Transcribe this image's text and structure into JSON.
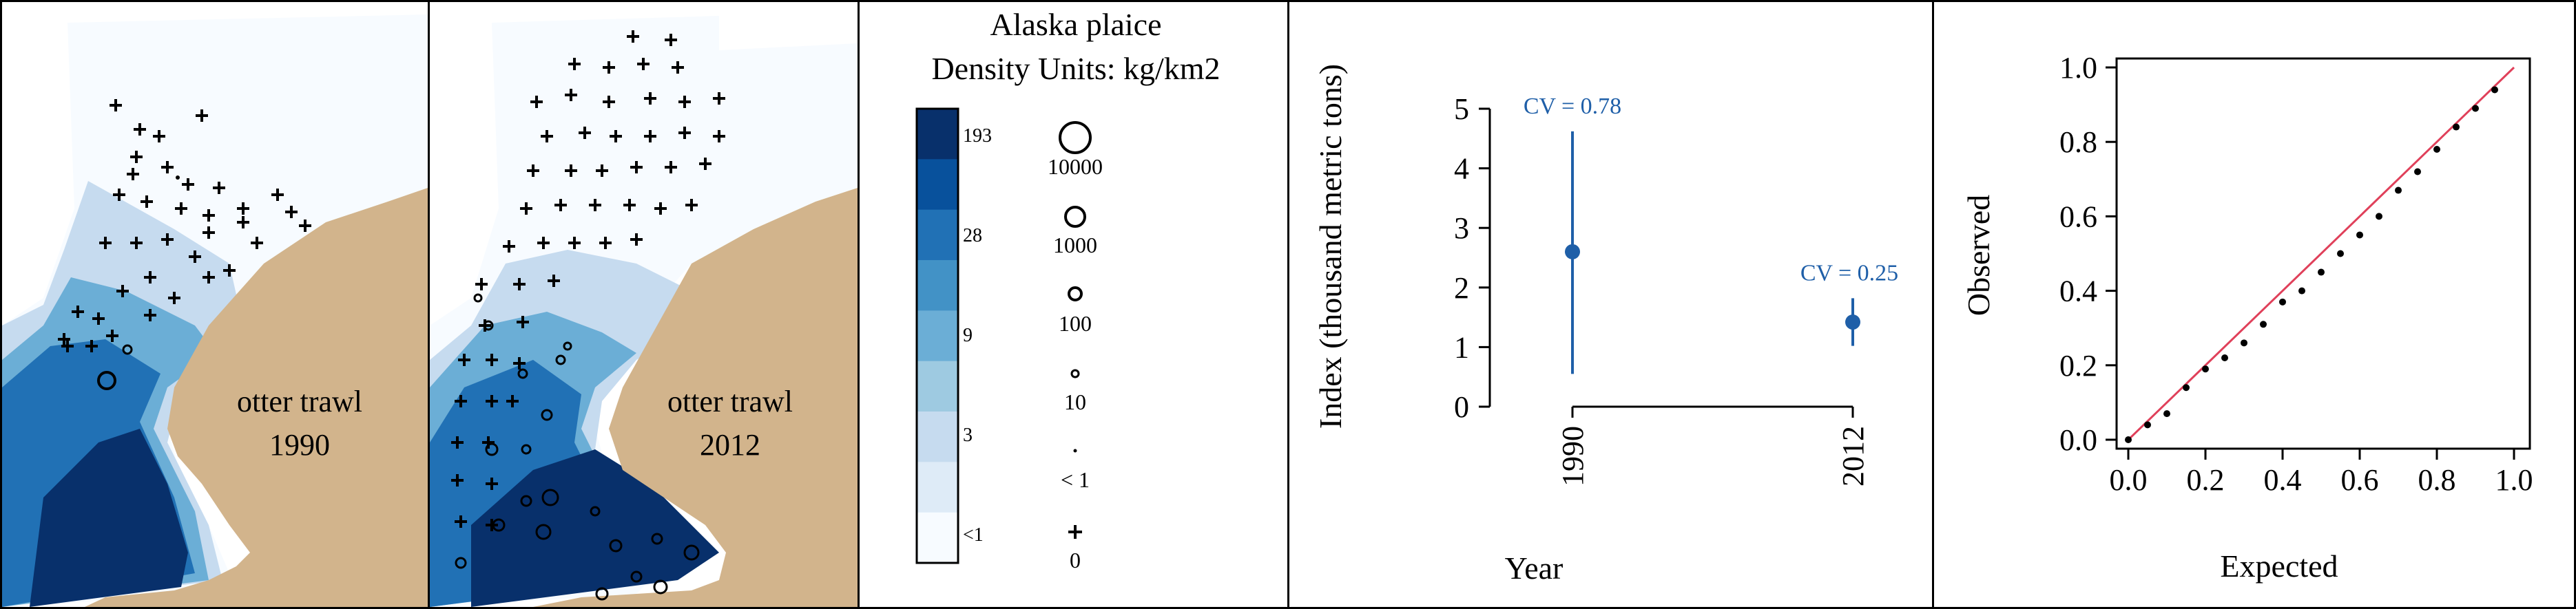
{
  "maps": [
    {
      "label_gear": "otter trawl",
      "label_year": "1990"
    },
    {
      "label_gear": "otter trawl",
      "label_year": "2012"
    }
  ],
  "legend": {
    "title": "Alaska plaice",
    "subtitle": "Density Units: kg/km2",
    "color_ticks": [
      "193",
      "28",
      "9",
      "3",
      "<1"
    ],
    "color_scale": [
      "#08306b",
      "#08519c",
      "#2171b5",
      "#4292c6",
      "#6baed6",
      "#9ecae1",
      "#c6dbef",
      "#deebf7",
      "#f7fbff"
    ],
    "size_labels": [
      "10000",
      "1000",
      "100",
      "10",
      "< 1",
      "0"
    ]
  },
  "colors": {
    "land": "#d2b48c",
    "series": "#1f5fa8",
    "diagonal": "#e0405a",
    "points": "#000000"
  },
  "chart_data": [
    {
      "type": "scatter",
      "title": "",
      "xlabel": "Year",
      "ylabel": "Index (thousand metric tons)",
      "categories": [
        "1990",
        "2012"
      ],
      "yticks": [
        "0",
        "1",
        "2",
        "3",
        "4",
        "5"
      ],
      "ylim": [
        0,
        5
      ],
      "values": [
        2.6,
        1.42
      ],
      "lower": [
        0.55,
        1.02
      ],
      "upper": [
        4.62,
        1.82
      ],
      "annotations": [
        "CV = 0.78",
        "CV = 0.25"
      ]
    },
    {
      "type": "scatter",
      "title": "",
      "xlabel": "Expected",
      "ylabel": "Observed",
      "xticks": [
        "0.0",
        "0.2",
        "0.4",
        "0.6",
        "0.8",
        "1.0"
      ],
      "yticks": [
        "0.0",
        "0.2",
        "0.4",
        "0.6",
        "0.8",
        "1.0"
      ],
      "xlim": [
        0,
        1
      ],
      "ylim": [
        0,
        1
      ],
      "reference_line": "y = x",
      "x": [
        0.0,
        0.05,
        0.1,
        0.15,
        0.2,
        0.25,
        0.3,
        0.35,
        0.4,
        0.45,
        0.5,
        0.55,
        0.6,
        0.65,
        0.7,
        0.75,
        0.8,
        0.85,
        0.9,
        0.95
      ],
      "y": [
        0.0,
        0.04,
        0.07,
        0.14,
        0.19,
        0.22,
        0.26,
        0.31,
        0.37,
        0.4,
        0.45,
        0.5,
        0.55,
        0.6,
        0.67,
        0.72,
        0.78,
        0.84,
        0.89,
        0.94
      ]
    }
  ]
}
